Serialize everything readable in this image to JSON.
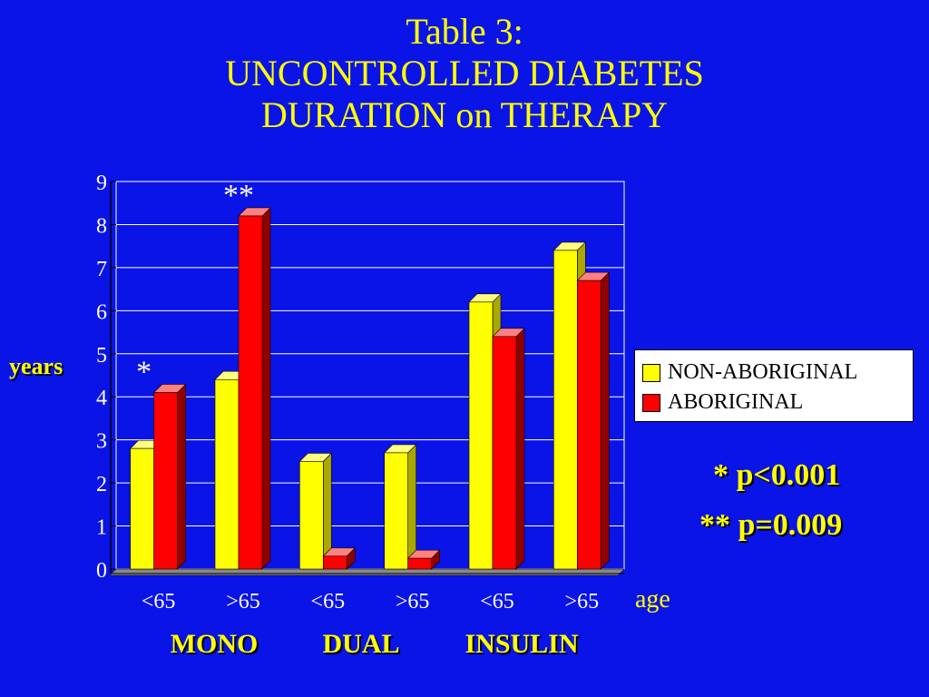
{
  "title_lines": [
    "Table 3:",
    "UNCONTROLLED DIABETES",
    "DURATION on THERAPY"
  ],
  "chart_data": {
    "type": "bar",
    "categories": [
      "<65",
      ">65",
      "<65",
      ">65",
      "<65",
      ">65"
    ],
    "groups": [
      "MONO",
      "DUAL",
      "INSULIN"
    ],
    "series": [
      {
        "name": "NON-ABORIGINAL",
        "values": [
          2.8,
          4.4,
          2.5,
          2.7,
          6.2,
          7.4
        ],
        "color": "#ffff00"
      },
      {
        "name": "ABORIGINAL",
        "values": [
          4.1,
          8.2,
          0.3,
          0.25,
          5.4,
          6.7
        ],
        "color": "#ff0000"
      }
    ],
    "annotations": [
      "*",
      "**",
      "",
      "",
      "",
      ""
    ],
    "ylabel": "years",
    "xlabel": "age",
    "ylim": [
      0,
      9
    ],
    "yticks": [
      "0",
      "1",
      "2",
      "3",
      "4",
      "5",
      "6",
      "7",
      "8",
      "9"
    ],
    "grid": true,
    "legend_position": "right",
    "plot_background": "#0a14e6"
  },
  "stats": [
    "* p<0.001",
    "** p=0.009"
  ]
}
